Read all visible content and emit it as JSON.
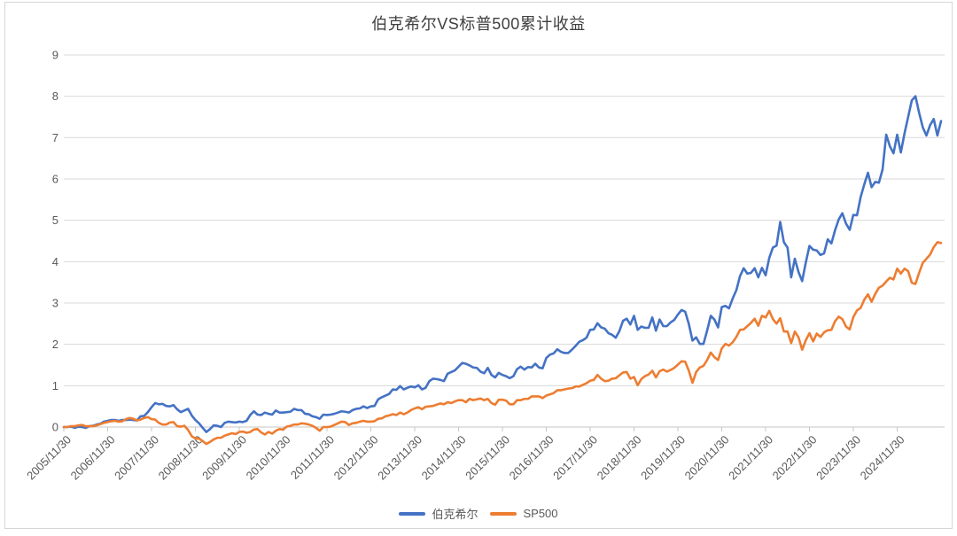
{
  "title": "伯克希尔VS标普500累计收益",
  "legend": [
    {
      "label": "伯克希尔",
      "color": "#4472C4"
    },
    {
      "label": "SP500",
      "color": "#ED7D31"
    }
  ],
  "colors": {
    "berkshire_line": "#4472C4",
    "sp500_line": "#ED7D31",
    "gridline": "#d9d9d9",
    "axis": "#c6c6c6",
    "tick_text": "#595959",
    "title_text": "#404040",
    "card_border": "#d6d6d6"
  },
  "chart_data": {
    "type": "line",
    "title": "伯克希尔VS标普500累计收益",
    "xlabel": "",
    "ylabel": "",
    "ylim": [
      0,
      9
    ],
    "y_ticks": [
      0,
      1,
      2,
      3,
      4,
      5,
      6,
      7,
      8,
      9
    ],
    "grid": "horizontal",
    "legend_position": "bottom-center",
    "x_tick_labels": [
      "2005/11/30",
      "2006/11/30",
      "2007/11/30",
      "2008/11/30",
      "2009/11/30",
      "2010/11/30",
      "2011/11/30",
      "2012/11/30",
      "2013/11/30",
      "2014/11/30",
      "2015/11/30",
      "2016/11/30",
      "2017/11/30",
      "2018/11/30",
      "2019/11/30",
      "2020/11/30",
      "2021/11/30",
      "2022/11/30",
      "2023/11/30",
      "2024/11/30"
    ],
    "x_start": "2005-11",
    "x_end": "2025-11",
    "x_frequency": "monthly",
    "x_ticks_every_n_points": 12,
    "series": [
      {
        "name": "伯克希尔",
        "color": "#4472C4",
        "values": [
          0.0,
          0.0,
          0.01,
          -0.02,
          0.01,
          0.0,
          -0.02,
          0.02,
          0.03,
          0.06,
          0.08,
          0.13,
          0.15,
          0.17,
          0.17,
          0.15,
          0.17,
          0.17,
          0.18,
          0.17,
          0.16,
          0.26,
          0.27,
          0.36,
          0.48,
          0.58,
          0.55,
          0.56,
          0.51,
          0.5,
          0.53,
          0.43,
          0.36,
          0.4,
          0.44,
          0.28,
          0.17,
          0.09,
          -0.02,
          -0.12,
          -0.05,
          0.04,
          0.03,
          0.0,
          0.1,
          0.13,
          0.12,
          0.11,
          0.13,
          0.12,
          0.15,
          0.29,
          0.38,
          0.3,
          0.29,
          0.35,
          0.32,
          0.3,
          0.4,
          0.35,
          0.35,
          0.36,
          0.37,
          0.44,
          0.41,
          0.41,
          0.32,
          0.31,
          0.26,
          0.24,
          0.2,
          0.3,
          0.29,
          0.3,
          0.32,
          0.35,
          0.38,
          0.37,
          0.35,
          0.41,
          0.44,
          0.45,
          0.5,
          0.46,
          0.5,
          0.51,
          0.67,
          0.72,
          0.76,
          0.8,
          0.91,
          0.9,
          0.99,
          0.91,
          0.95,
          0.98,
          0.96,
          1.01,
          0.91,
          0.95,
          1.11,
          1.17,
          1.16,
          1.14,
          1.11,
          1.29,
          1.33,
          1.37,
          1.46,
          1.55,
          1.53,
          1.49,
          1.44,
          1.43,
          1.34,
          1.3,
          1.43,
          1.26,
          1.2,
          1.31,
          1.26,
          1.23,
          1.18,
          1.23,
          1.4,
          1.46,
          1.39,
          1.45,
          1.44,
          1.53,
          1.44,
          1.42,
          1.67,
          1.75,
          1.78,
          1.88,
          1.82,
          1.79,
          1.79,
          1.87,
          1.96,
          2.06,
          2.1,
          2.16,
          2.35,
          2.36,
          2.51,
          2.41,
          2.38,
          2.27,
          2.23,
          2.16,
          2.32,
          2.57,
          2.62,
          2.48,
          2.69,
          2.35,
          2.43,
          2.4,
          2.4,
          2.65,
          2.33,
          2.6,
          2.44,
          2.44,
          2.53,
          2.59,
          2.72,
          2.83,
          2.79,
          2.49,
          2.09,
          2.17,
          2.01,
          2.01,
          2.33,
          2.69,
          2.6,
          2.41,
          2.9,
          2.93,
          2.87,
          3.11,
          3.31,
          3.65,
          3.84,
          3.71,
          3.73,
          3.84,
          3.62,
          3.85,
          3.67,
          4.09,
          4.34,
          4.39,
          4.96,
          4.47,
          4.34,
          3.62,
          4.07,
          3.75,
          3.53,
          3.98,
          4.38,
          4.29,
          4.27,
          4.16,
          4.2,
          4.54,
          4.44,
          4.76,
          5.02,
          5.17,
          4.92,
          4.77,
          5.13,
          5.12,
          5.56,
          5.87,
          6.15,
          5.8,
          5.93,
          5.91,
          6.23,
          7.07,
          6.79,
          6.62,
          7.07,
          6.64,
          7.1,
          7.5,
          7.9,
          8.0,
          7.6,
          7.25,
          7.05,
          7.3,
          7.45,
          7.05,
          7.4
        ]
      },
      {
        "name": "SP500",
        "color": "#ED7D31",
        "values": [
          0.0,
          0.0,
          0.02,
          0.02,
          0.04,
          0.05,
          0.02,
          0.02,
          0.02,
          0.04,
          0.07,
          0.1,
          0.12,
          0.14,
          0.15,
          0.13,
          0.14,
          0.19,
          0.22,
          0.2,
          0.16,
          0.18,
          0.22,
          0.24,
          0.19,
          0.18,
          0.1,
          0.06,
          0.06,
          0.11,
          0.12,
          0.02,
          0.01,
          0.03,
          -0.07,
          -0.22,
          -0.28,
          -0.28,
          -0.34,
          -0.41,
          -0.36,
          -0.3,
          -0.26,
          -0.26,
          -0.21,
          -0.18,
          -0.15,
          -0.17,
          -0.12,
          -0.11,
          -0.14,
          -0.12,
          -0.06,
          -0.05,
          -0.13,
          -0.18,
          -0.12,
          -0.16,
          -0.09,
          -0.05,
          -0.06,
          0.01,
          0.03,
          0.06,
          0.06,
          0.09,
          0.08,
          0.06,
          0.03,
          -0.02,
          -0.09,
          0.0,
          0.0,
          0.01,
          0.05,
          0.09,
          0.13,
          0.12,
          0.05,
          0.09,
          0.1,
          0.13,
          0.15,
          0.13,
          0.13,
          0.14,
          0.2,
          0.21,
          0.26,
          0.28,
          0.31,
          0.29,
          0.35,
          0.31,
          0.35,
          0.41,
          0.45,
          0.48,
          0.43,
          0.49,
          0.5,
          0.51,
          0.54,
          0.57,
          0.55,
          0.6,
          0.58,
          0.62,
          0.65,
          0.65,
          0.6,
          0.68,
          0.65,
          0.67,
          0.69,
          0.65,
          0.68,
          0.58,
          0.54,
          0.66,
          0.66,
          0.64,
          0.55,
          0.55,
          0.65,
          0.65,
          0.68,
          0.68,
          0.74,
          0.74,
          0.74,
          0.7,
          0.76,
          0.79,
          0.82,
          0.89,
          0.89,
          0.91,
          0.93,
          0.94,
          0.98,
          0.98,
          1.02,
          1.06,
          1.12,
          1.14,
          1.26,
          1.17,
          1.11,
          1.12,
          1.17,
          1.18,
          1.25,
          1.32,
          1.33,
          1.17,
          1.21,
          1.01,
          1.16,
          1.23,
          1.27,
          1.36,
          1.2,
          1.35,
          1.39,
          1.34,
          1.38,
          1.43,
          1.51,
          1.59,
          1.58,
          1.36,
          1.07,
          1.33,
          1.44,
          1.48,
          1.62,
          1.8,
          1.69,
          1.62,
          1.9,
          2.01,
          1.97,
          2.05,
          2.18,
          2.35,
          2.36,
          2.44,
          2.52,
          2.62,
          2.45,
          2.69,
          2.65,
          2.81,
          2.61,
          2.5,
          2.63,
          2.31,
          2.31,
          2.03,
          2.31,
          2.17,
          1.87,
          2.1,
          2.27,
          2.07,
          2.26,
          2.18,
          2.29,
          2.34,
          2.35,
          2.56,
          2.67,
          2.61,
          2.43,
          2.36,
          2.66,
          2.82,
          2.88,
          3.08,
          3.21,
          3.03,
          3.22,
          3.37,
          3.42,
          3.52,
          3.61,
          3.57,
          3.83,
          3.71,
          3.83,
          3.77,
          3.49,
          3.46,
          3.73,
          3.97,
          4.07,
          4.17,
          4.35,
          4.47,
          4.45
        ]
      }
    ]
  }
}
